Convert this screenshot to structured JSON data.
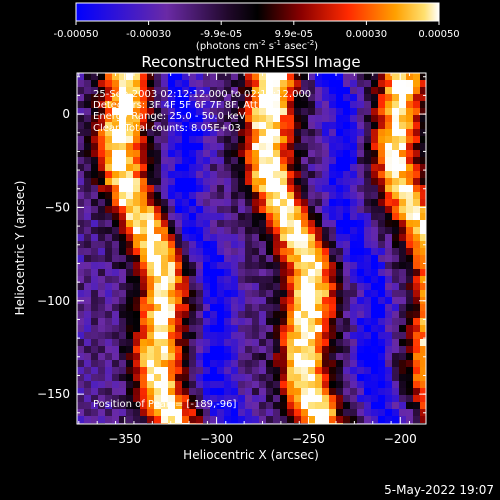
{
  "colorbar": {
    "ticks": [
      "-0.00050",
      "-0.00030",
      "-9.9e-05",
      "9.9e-05",
      "0.00030",
      "0.00050"
    ],
    "unit_main": "(photons cm",
    "unit_sup1": "-2",
    "unit_mid": " s",
    "unit_sup2": "-1",
    "unit_end": " asec",
    "unit_sup3": "-2",
    "unit_close": ")"
  },
  "title": "Reconstructed RHESSI Image",
  "info": {
    "line1": "25-Sep-2003 02:12:12.000 to 02:18:12.000",
    "line2": "Detectors: 3F 4F 5F 6F 7F 8F, Att 0",
    "line3": "Energy Range: 25.0 - 50.0 keV",
    "line4": "Clean    Total counts: 8.05E+03",
    "peak": "Position of Peak = [-189,-96]"
  },
  "footer": "5-May-2022 19:07",
  "chart_data": {
    "type": "heatmap",
    "title": "Reconstructed RHESSI Image",
    "xlabel": "Heliocentric X (arcsec)",
    "ylabel": "Heliocentric Y (arcsec)",
    "xlim": [
      -376,
      -186
    ],
    "ylim": [
      -166,
      22
    ],
    "xticks": [
      -350,
      -300,
      -250,
      -200
    ],
    "yticks": [
      0,
      -50,
      -100,
      -150
    ],
    "zlim": [
      -0.0005,
      0.0005
    ],
    "colormap": "rhessi-heat",
    "colormap_stops": [
      "#0000ff",
      "#6a2aa6",
      "#2a0a3a",
      "#000000",
      "#8a0000",
      "#ff2a00",
      "#ff9a00",
      "#ffe070",
      "#ffffff"
    ],
    "bright_stripes": [
      {
        "x_at_top": -355,
        "slope_x_per_y": -0.18,
        "intensity": 0.95
      },
      {
        "x_at_top": -275,
        "slope_x_per_y": -0.18,
        "intensity": 1.0
      },
      {
        "x_at_top": -205,
        "slope_x_per_y": -0.18,
        "intensity": 0.9
      }
    ],
    "dark_lanes": [
      {
        "x_at_top": -325,
        "slope_x_per_y": -0.18
      },
      {
        "x_at_top": -240,
        "slope_x_per_y": -0.18
      }
    ],
    "peak_position": [
      -189,
      -96
    ]
  }
}
